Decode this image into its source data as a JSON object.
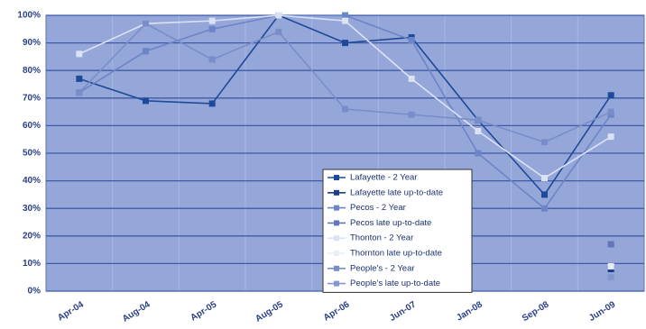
{
  "chart_data": {
    "type": "line",
    "categories": [
      "Apr-04",
      "Aug-04",
      "Apr-05",
      "Aug-05",
      "Apr-06",
      "Jun-07",
      "Jan-08",
      "Sep-08",
      "Jun-09"
    ],
    "series": [
      {
        "name": "Lafayette - 2 Year",
        "color": "#1f4a9a",
        "values": [
          77,
          69,
          68,
          100,
          90,
          92,
          62,
          35,
          71
        ]
      },
      {
        "name": "Lafayette late up-to-date",
        "color": "#1a3f8c",
        "values": [
          null,
          null,
          null,
          null,
          null,
          null,
          null,
          null,
          8
        ]
      },
      {
        "name": "Pecos - 2 Year",
        "color": "#6c84c8",
        "values": [
          72,
          87,
          95,
          100,
          100,
          91,
          50,
          30,
          64
        ]
      },
      {
        "name": "Pecos late up-to-date",
        "color": "#6176bd",
        "values": [
          null,
          null,
          null,
          null,
          null,
          null,
          null,
          null,
          17
        ]
      },
      {
        "name": "Thonton - 2 Year",
        "color": "#dbe2f3",
        "values": [
          86,
          97,
          98,
          100,
          98,
          77,
          58,
          41,
          56
        ]
      },
      {
        "name": "Thornton late up-to-date",
        "color": "#e8edf8",
        "values": [
          null,
          null,
          null,
          null,
          null,
          null,
          null,
          null,
          9
        ]
      },
      {
        "name": "People's - 2 Year",
        "color": "#7a8dcb",
        "values": [
          72,
          97,
          84,
          94,
          66,
          64,
          62,
          54,
          65
        ]
      },
      {
        "name": "People's late up-to-date",
        "color": "#8496d0",
        "values": [
          null,
          null,
          null,
          null,
          null,
          null,
          null,
          null,
          5
        ]
      }
    ],
    "ylim": [
      0,
      100
    ],
    "yticks": [
      {
        "value": 0,
        "label": "0%"
      },
      {
        "value": 10,
        "label": "10%"
      },
      {
        "value": 20,
        "label": "20%"
      },
      {
        "value": 30,
        "label": "30%"
      },
      {
        "value": 40,
        "label": "40%"
      },
      {
        "value": 50,
        "label": "50%"
      },
      {
        "value": 60,
        "label": "60%"
      },
      {
        "value": 70,
        "label": "70%"
      },
      {
        "value": 80,
        "label": "80%"
      },
      {
        "value": 90,
        "label": "90%"
      },
      {
        "value": 100,
        "label": "100%"
      }
    ],
    "grid": true
  }
}
